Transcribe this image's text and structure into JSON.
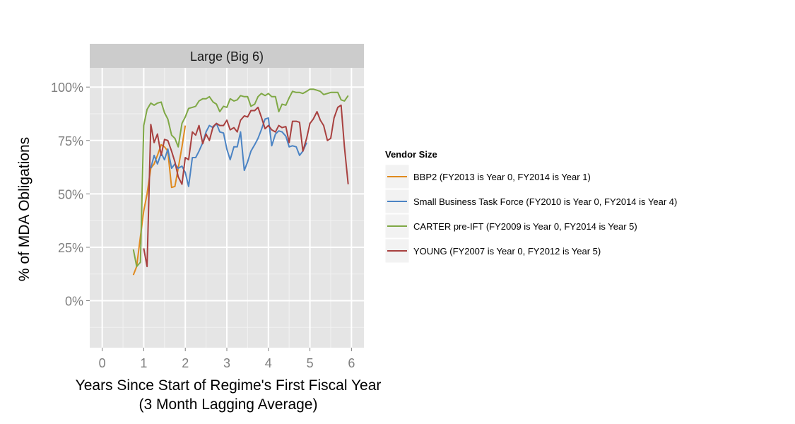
{
  "chart_data": {
    "type": "line",
    "facet_title": "Large (Big 6)",
    "xlabel_line1": "Years Since Start of Regime's First Fiscal Year",
    "xlabel_line2": "(3 Month Lagging Average)",
    "ylabel": "% of MDA Obligations",
    "xlim": [
      -0.3,
      6.3
    ],
    "ylim": [
      -0.22,
      1.09
    ],
    "x_ticks": [
      0,
      1,
      2,
      3,
      4,
      5,
      6
    ],
    "x_tick_labels": [
      "0",
      "1",
      "2",
      "3",
      "4",
      "5",
      "6"
    ],
    "y_ticks": [
      0,
      0.25,
      0.5,
      0.75,
      1.0
    ],
    "y_tick_labels": [
      "0%",
      "25%",
      "50%",
      "75%",
      "100%"
    ],
    "grid": true,
    "legend": {
      "title": "Vendor Size",
      "position": "right"
    },
    "series": [
      {
        "name": "BBP2 (FY2013 is Year 0, FY2014 is Year 1)",
        "color": "#E08A1E",
        "points": [
          [
            0.75,
            0.12
          ],
          [
            0.83,
            0.16
          ],
          [
            0.92,
            0.3
          ],
          [
            1.0,
            0.42
          ],
          [
            1.08,
            0.5
          ],
          [
            1.17,
            0.62
          ],
          [
            1.25,
            0.64
          ],
          [
            1.33,
            0.68
          ],
          [
            1.42,
            0.73
          ],
          [
            1.5,
            0.72
          ],
          [
            1.58,
            0.7
          ],
          [
            1.67,
            0.53
          ],
          [
            1.75,
            0.535
          ],
          [
            1.83,
            0.62
          ],
          [
            1.92,
            0.72
          ],
          [
            2.0,
            0.82
          ]
        ]
      },
      {
        "name": "Small Business Task Force (FY2010 is Year 0, FY2014 is Year 4)",
        "color": "#4C84C4",
        "points": [
          [
            1.17,
            0.62
          ],
          [
            1.25,
            0.68
          ],
          [
            1.33,
            0.64
          ],
          [
            1.42,
            0.69
          ],
          [
            1.5,
            0.66
          ],
          [
            1.58,
            0.71
          ],
          [
            1.67,
            0.62
          ],
          [
            1.75,
            0.64
          ],
          [
            1.83,
            0.62
          ],
          [
            1.92,
            0.63
          ],
          [
            2.0,
            0.6
          ],
          [
            2.08,
            0.535
          ],
          [
            2.17,
            0.67
          ],
          [
            2.25,
            0.67
          ],
          [
            2.33,
            0.7
          ],
          [
            2.42,
            0.74
          ],
          [
            2.5,
            0.79
          ],
          [
            2.58,
            0.82
          ],
          [
            2.67,
            0.81
          ],
          [
            2.75,
            0.83
          ],
          [
            2.83,
            0.79
          ],
          [
            2.92,
            0.785
          ],
          [
            3.0,
            0.71
          ],
          [
            3.08,
            0.66
          ],
          [
            3.17,
            0.72
          ],
          [
            3.25,
            0.72
          ],
          [
            3.33,
            0.79
          ],
          [
            3.42,
            0.61
          ],
          [
            3.5,
            0.65
          ],
          [
            3.58,
            0.7
          ],
          [
            3.67,
            0.73
          ],
          [
            3.75,
            0.76
          ],
          [
            3.83,
            0.8
          ],
          [
            3.92,
            0.85
          ],
          [
            4.0,
            0.855
          ],
          [
            4.08,
            0.725
          ],
          [
            4.17,
            0.78
          ],
          [
            4.25,
            0.795
          ],
          [
            4.33,
            0.79
          ],
          [
            4.42,
            0.77
          ],
          [
            4.5,
            0.72
          ],
          [
            4.58,
            0.725
          ],
          [
            4.67,
            0.72
          ],
          [
            4.75,
            0.68
          ],
          [
            4.83,
            0.7
          ],
          [
            4.92,
            0.74
          ]
        ]
      },
      {
        "name": "CARTER pre-IFT (FY2009 is Year 0, FY2014 is Year 5)",
        "color": "#7FA845",
        "points": [
          [
            0.75,
            0.24
          ],
          [
            0.83,
            0.16
          ],
          [
            0.92,
            0.18
          ],
          [
            1.0,
            0.82
          ],
          [
            1.08,
            0.895
          ],
          [
            1.17,
            0.925
          ],
          [
            1.25,
            0.915
          ],
          [
            1.33,
            0.925
          ],
          [
            1.42,
            0.93
          ],
          [
            1.5,
            0.88
          ],
          [
            1.58,
            0.85
          ],
          [
            1.67,
            0.775
          ],
          [
            1.75,
            0.76
          ],
          [
            1.83,
            0.72
          ],
          [
            1.92,
            0.83
          ],
          [
            2.0,
            0.86
          ],
          [
            2.08,
            0.9
          ],
          [
            2.17,
            0.905
          ],
          [
            2.25,
            0.91
          ],
          [
            2.33,
            0.935
          ],
          [
            2.42,
            0.945
          ],
          [
            2.5,
            0.945
          ],
          [
            2.58,
            0.955
          ],
          [
            2.67,
            0.93
          ],
          [
            2.75,
            0.92
          ],
          [
            2.83,
            0.885
          ],
          [
            2.92,
            0.91
          ],
          [
            3.0,
            0.905
          ],
          [
            3.08,
            0.945
          ],
          [
            3.17,
            0.935
          ],
          [
            3.25,
            0.94
          ],
          [
            3.33,
            0.96
          ],
          [
            3.42,
            0.955
          ],
          [
            3.5,
            0.955
          ],
          [
            3.58,
            0.91
          ],
          [
            3.67,
            0.92
          ],
          [
            3.75,
            0.955
          ],
          [
            3.83,
            0.97
          ],
          [
            3.92,
            0.96
          ],
          [
            4.0,
            0.97
          ],
          [
            4.08,
            0.955
          ],
          [
            4.17,
            0.955
          ],
          [
            4.25,
            0.885
          ],
          [
            4.33,
            0.92
          ],
          [
            4.42,
            0.915
          ],
          [
            4.5,
            0.95
          ],
          [
            4.58,
            0.98
          ],
          [
            4.67,
            0.975
          ],
          [
            4.75,
            0.975
          ],
          [
            4.83,
            0.97
          ],
          [
            4.92,
            0.98
          ],
          [
            5.0,
            0.99
          ],
          [
            5.08,
            0.99
          ],
          [
            5.17,
            0.985
          ],
          [
            5.25,
            0.98
          ],
          [
            5.33,
            0.965
          ],
          [
            5.42,
            0.97
          ],
          [
            5.5,
            0.975
          ],
          [
            5.58,
            0.975
          ],
          [
            5.67,
            0.975
          ],
          [
            5.75,
            0.94
          ],
          [
            5.83,
            0.935
          ],
          [
            5.92,
            0.96
          ]
        ]
      },
      {
        "name": "YOUNG (FY2007 is Year 0, FY2012 is Year 5)",
        "color": "#A8403F",
        "points": [
          [
            1.0,
            0.245
          ],
          [
            1.08,
            0.16
          ],
          [
            1.17,
            0.825
          ],
          [
            1.25,
            0.74
          ],
          [
            1.33,
            0.78
          ],
          [
            1.42,
            0.68
          ],
          [
            1.5,
            0.755
          ],
          [
            1.58,
            0.75
          ],
          [
            1.67,
            0.7
          ],
          [
            1.75,
            0.65
          ],
          [
            1.83,
            0.58
          ],
          [
            1.92,
            0.545
          ],
          [
            2.0,
            0.67
          ],
          [
            2.08,
            0.66
          ],
          [
            2.17,
            0.79
          ],
          [
            2.25,
            0.775
          ],
          [
            2.33,
            0.82
          ],
          [
            2.42,
            0.735
          ],
          [
            2.5,
            0.78
          ],
          [
            2.58,
            0.75
          ],
          [
            2.67,
            0.815
          ],
          [
            2.75,
            0.83
          ],
          [
            2.83,
            0.82
          ],
          [
            2.92,
            0.82
          ],
          [
            3.0,
            0.845
          ],
          [
            3.08,
            0.8
          ],
          [
            3.17,
            0.81
          ],
          [
            3.25,
            0.79
          ],
          [
            3.33,
            0.845
          ],
          [
            3.42,
            0.865
          ],
          [
            3.5,
            0.86
          ],
          [
            3.58,
            0.89
          ],
          [
            3.67,
            0.89
          ],
          [
            3.75,
            0.905
          ],
          [
            3.83,
            0.86
          ],
          [
            3.92,
            0.805
          ],
          [
            4.0,
            0.82
          ],
          [
            4.08,
            0.8
          ],
          [
            4.17,
            0.79
          ],
          [
            4.25,
            0.82
          ],
          [
            4.33,
            0.81
          ],
          [
            4.42,
            0.815
          ],
          [
            4.5,
            0.74
          ],
          [
            4.58,
            0.84
          ],
          [
            4.67,
            0.84
          ],
          [
            4.75,
            0.835
          ],
          [
            4.83,
            0.7
          ],
          [
            4.92,
            0.76
          ],
          [
            5.0,
            0.83
          ],
          [
            5.08,
            0.85
          ],
          [
            5.17,
            0.885
          ],
          [
            5.25,
            0.845
          ],
          [
            5.33,
            0.82
          ],
          [
            5.42,
            0.75
          ],
          [
            5.5,
            0.76
          ],
          [
            5.58,
            0.855
          ],
          [
            5.67,
            0.905
          ],
          [
            5.75,
            0.915
          ],
          [
            5.83,
            0.72
          ],
          [
            5.92,
            0.545
          ]
        ]
      }
    ]
  }
}
